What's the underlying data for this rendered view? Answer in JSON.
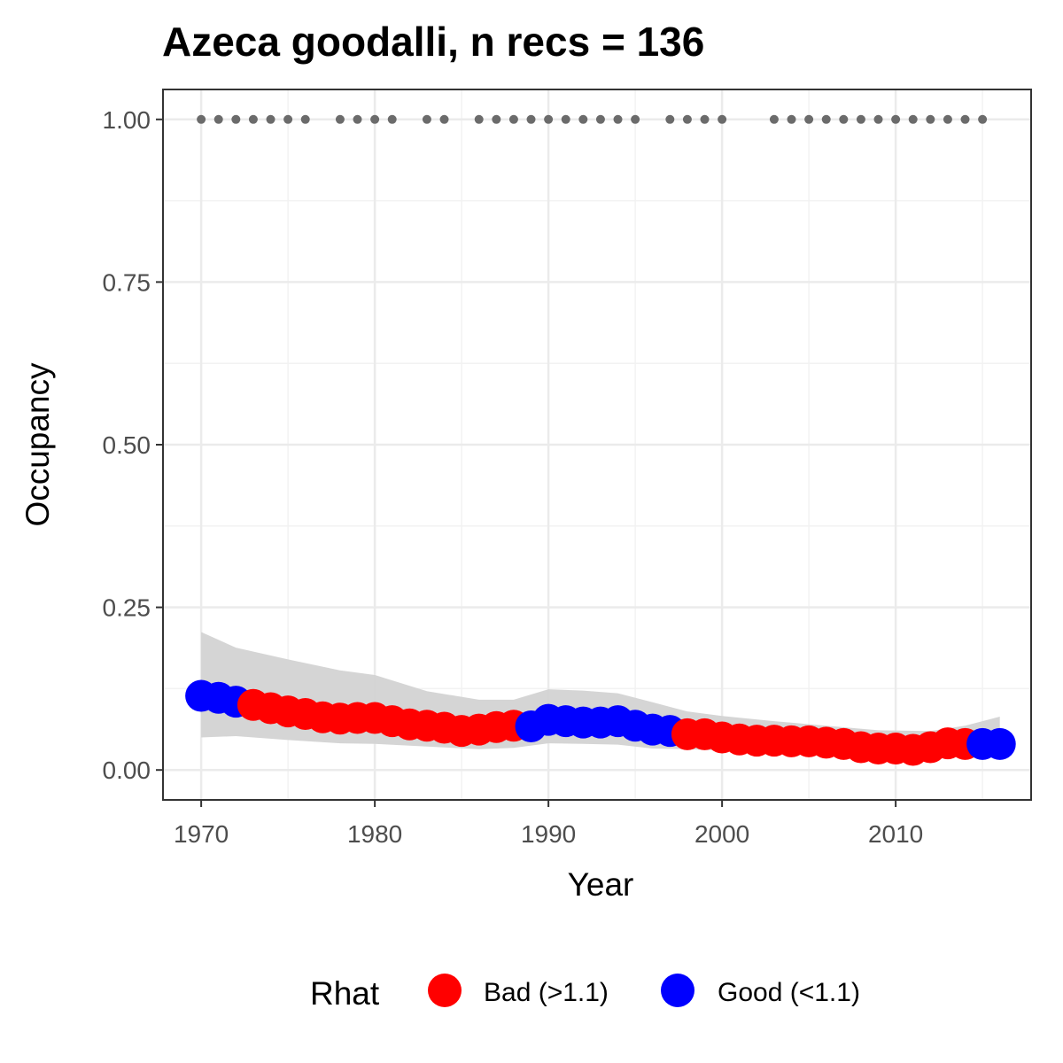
{
  "chart_data": {
    "type": "scatter",
    "title": "Azeca goodalli, n recs = 136",
    "xlabel": "Year",
    "ylabel": "Occupancy",
    "xlim": [
      1967.8,
      2017.8
    ],
    "ylim": [
      -0.046,
      1.046
    ],
    "x_ticks": [
      1970,
      1980,
      1990,
      2000,
      2010
    ],
    "x_tick_labels": [
      "1970",
      "1980",
      "1990",
      "2000",
      "2010"
    ],
    "y_ticks": [
      0,
      0.25,
      0.5,
      0.75,
      1
    ],
    "y_tick_labels": [
      "0.00",
      "0.25",
      "0.50",
      "0.75",
      "1.00"
    ],
    "grid": true,
    "legend": {
      "title": "Rhat",
      "position": "bottom",
      "entries": [
        {
          "label": "Bad (>1.1)",
          "color": "#ff0000"
        },
        {
          "label": "Good (<1.1)",
          "color": "#0000ff"
        }
      ]
    },
    "colors": {
      "bad": "#ff0000",
      "good": "#0000ff",
      "records": "#6b6b6b",
      "ribbon": "#d3d3d3"
    },
    "series": [
      {
        "name": "Occupancy",
        "points": [
          {
            "x": 1970,
            "y": 0.114,
            "rhat": "good"
          },
          {
            "x": 1971,
            "y": 0.111,
            "rhat": "good"
          },
          {
            "x": 1972,
            "y": 0.105,
            "rhat": "good"
          },
          {
            "x": 1973,
            "y": 0.1,
            "rhat": "bad"
          },
          {
            "x": 1974,
            "y": 0.095,
            "rhat": "bad"
          },
          {
            "x": 1975,
            "y": 0.09,
            "rhat": "bad"
          },
          {
            "x": 1976,
            "y": 0.086,
            "rhat": "bad"
          },
          {
            "x": 1977,
            "y": 0.081,
            "rhat": "bad"
          },
          {
            "x": 1978,
            "y": 0.079,
            "rhat": "bad"
          },
          {
            "x": 1979,
            "y": 0.08,
            "rhat": "bad"
          },
          {
            "x": 1980,
            "y": 0.08,
            "rhat": "bad"
          },
          {
            "x": 1981,
            "y": 0.075,
            "rhat": "bad"
          },
          {
            "x": 1982,
            "y": 0.07,
            "rhat": "bad"
          },
          {
            "x": 1983,
            "y": 0.068,
            "rhat": "bad"
          },
          {
            "x": 1984,
            "y": 0.065,
            "rhat": "bad"
          },
          {
            "x": 1985,
            "y": 0.06,
            "rhat": "bad"
          },
          {
            "x": 1986,
            "y": 0.062,
            "rhat": "bad"
          },
          {
            "x": 1987,
            "y": 0.066,
            "rhat": "bad"
          },
          {
            "x": 1988,
            "y": 0.068,
            "rhat": "bad"
          },
          {
            "x": 1989,
            "y": 0.067,
            "rhat": "good"
          },
          {
            "x": 1990,
            "y": 0.077,
            "rhat": "good"
          },
          {
            "x": 1991,
            "y": 0.075,
            "rhat": "good"
          },
          {
            "x": 1992,
            "y": 0.073,
            "rhat": "good"
          },
          {
            "x": 1993,
            "y": 0.073,
            "rhat": "good"
          },
          {
            "x": 1994,
            "y": 0.075,
            "rhat": "good"
          },
          {
            "x": 1995,
            "y": 0.068,
            "rhat": "good"
          },
          {
            "x": 1996,
            "y": 0.062,
            "rhat": "good"
          },
          {
            "x": 1997,
            "y": 0.06,
            "rhat": "good"
          },
          {
            "x": 1998,
            "y": 0.055,
            "rhat": "bad"
          },
          {
            "x": 1999,
            "y": 0.055,
            "rhat": "bad"
          },
          {
            "x": 2000,
            "y": 0.05,
            "rhat": "bad"
          },
          {
            "x": 2001,
            "y": 0.047,
            "rhat": "bad"
          },
          {
            "x": 2002,
            "y": 0.045,
            "rhat": "bad"
          },
          {
            "x": 2003,
            "y": 0.045,
            "rhat": "bad"
          },
          {
            "x": 2004,
            "y": 0.044,
            "rhat": "bad"
          },
          {
            "x": 2005,
            "y": 0.044,
            "rhat": "bad"
          },
          {
            "x": 2006,
            "y": 0.042,
            "rhat": "bad"
          },
          {
            "x": 2007,
            "y": 0.04,
            "rhat": "bad"
          },
          {
            "x": 2008,
            "y": 0.035,
            "rhat": "bad"
          },
          {
            "x": 2009,
            "y": 0.033,
            "rhat": "bad"
          },
          {
            "x": 2010,
            "y": 0.033,
            "rhat": "bad"
          },
          {
            "x": 2011,
            "y": 0.031,
            "rhat": "bad"
          },
          {
            "x": 2012,
            "y": 0.035,
            "rhat": "bad"
          },
          {
            "x": 2013,
            "y": 0.041,
            "rhat": "bad"
          },
          {
            "x": 2014,
            "y": 0.04,
            "rhat": "bad"
          },
          {
            "x": 2015,
            "y": 0.04,
            "rhat": "good"
          },
          {
            "x": 2016,
            "y": 0.04,
            "rhat": "good"
          }
        ]
      }
    ],
    "ribbon": {
      "x": [
        1970,
        1972,
        1975,
        1978,
        1980,
        1983,
        1986,
        1988,
        1990,
        1992,
        1994,
        1996,
        1998,
        2000,
        2003,
        2006,
        2009,
        2012,
        2014,
        2016
      ],
      "lower": [
        0.05,
        0.052,
        0.046,
        0.041,
        0.04,
        0.036,
        0.032,
        0.034,
        0.041,
        0.04,
        0.039,
        0.033,
        0.032,
        0.03,
        0.029,
        0.028,
        0.025,
        0.024,
        0.026,
        0.03
      ],
      "upper": [
        0.212,
        0.188,
        0.17,
        0.153,
        0.146,
        0.121,
        0.108,
        0.108,
        0.124,
        0.122,
        0.118,
        0.104,
        0.09,
        0.083,
        0.075,
        0.068,
        0.061,
        0.06,
        0.068,
        0.082
      ]
    },
    "records": {
      "y": 1.0,
      "x": [
        1970,
        1971,
        1972,
        1973,
        1974,
        1975,
        1976,
        1978,
        1979,
        1980,
        1981,
        1983,
        1984,
        1986,
        1987,
        1988,
        1989,
        1990,
        1991,
        1992,
        1993,
        1994,
        1995,
        1997,
        1998,
        1999,
        2000,
        2003,
        2004,
        2005,
        2006,
        2007,
        2008,
        2009,
        2010,
        2011,
        2012,
        2013,
        2014,
        2015
      ]
    }
  }
}
